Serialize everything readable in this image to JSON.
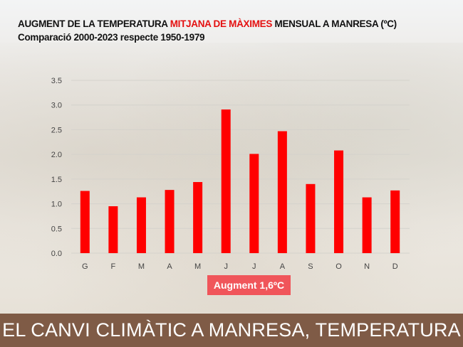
{
  "chart_data": {
    "type": "bar",
    "title_parts": [
      "AUGMENT DE LA TEMPERATURA ",
      "MITJANA DE MÀXIMES",
      " MENSUAL A MANRESA (ºC)"
    ],
    "subtitle": "Comparació 2000-2023 respecte 1950-1979",
    "categories": [
      "G",
      "F",
      "M",
      "A",
      "M",
      "J",
      "J",
      "A",
      "S",
      "O",
      "N",
      "D"
    ],
    "values": [
      1.26,
      0.95,
      1.13,
      1.28,
      1.44,
      2.91,
      2.01,
      2.47,
      1.4,
      2.08,
      1.13,
      1.27
    ],
    "yticks": [
      "0.0",
      "0.5",
      "1.0",
      "1.5",
      "2.0",
      "2.5",
      "3.0",
      "3.5"
    ],
    "ylim": [
      0,
      3.5
    ],
    "xlabel": "",
    "ylabel": "",
    "grid": true,
    "bar_color": "#ff0000",
    "highlight_color": "#e41010"
  },
  "annotation": "Augment 1,6ºC",
  "banner": "EL CANVI CLIMÀTIC A MANRESA, TEMPERATURA"
}
